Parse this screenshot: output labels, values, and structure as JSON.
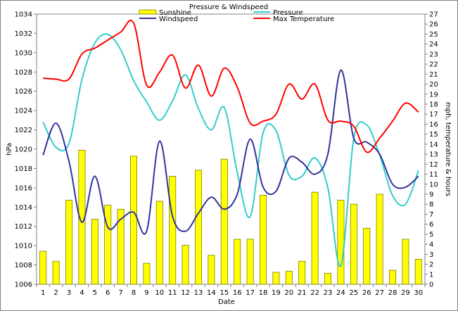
{
  "chart_data": {
    "type": "bar",
    "title": "Pressure & Windspeed",
    "xlabel": "Date",
    "ylabel": "hPa",
    "y2label": "mph, temperature & hours",
    "categories": [
      "1",
      "2",
      "3",
      "4",
      "5",
      "6",
      "7",
      "8",
      "9",
      "10",
      "11",
      "12",
      "13",
      "14",
      "15",
      "16",
      "17",
      "18",
      "19",
      "20",
      "21",
      "22",
      "23",
      "24",
      "25",
      "26",
      "27",
      "28",
      "29",
      "30"
    ],
    "ylim": [
      1006,
      1034
    ],
    "y_ticks": [
      "1006",
      "1008",
      "1010",
      "1012",
      "1014",
      "1016",
      "1018",
      "1020",
      "1022",
      "1024",
      "1026",
      "1028",
      "1030",
      "1032",
      "1034"
    ],
    "y2lim": [
      0,
      27
    ],
    "y2_ticks": [
      "0",
      "1",
      "2",
      "3",
      "4",
      "5",
      "6",
      "7",
      "8",
      "9",
      "10",
      "11",
      "12",
      "13",
      "14",
      "15",
      "16",
      "17",
      "18",
      "19",
      "20",
      "21",
      "22",
      "23",
      "24",
      "25",
      "26",
      "27"
    ],
    "legend_position": "top",
    "grid": false,
    "series": [
      {
        "name": "Sunshine",
        "type": "bar",
        "axis": "right",
        "color": "#ffff00",
        "values": [
          3.3,
          2.3,
          8.4,
          13.4,
          6.5,
          7.9,
          7.5,
          12.8,
          2.1,
          8.3,
          10.8,
          3.9,
          11.4,
          2.9,
          12.5,
          4.5,
          4.5,
          8.9,
          1.2,
          1.3,
          2.3,
          9.2,
          1.1,
          8.4,
          8.0,
          5.6,
          9.0,
          1.4,
          4.5,
          2.5
        ]
      },
      {
        "name": "Pressure",
        "type": "line",
        "axis": "left",
        "color": "#33cccc",
        "values": [
          1022.8,
          1020.2,
          1020.6,
          1027.2,
          1031.0,
          1031.9,
          1030.3,
          1027.1,
          1024.9,
          1023.0,
          1025.0,
          1027.7,
          1024.2,
          1022.0,
          1024.3,
          1017.6,
          1013.0,
          1021.7,
          1021.9,
          1017.3,
          1017.2,
          1019.1,
          1016.0,
          1007.9,
          1021.1,
          1022.5,
          1019.4,
          1015.2,
          1014.3,
          1017.8
        ]
      },
      {
        "name": "Windspeed",
        "type": "line",
        "axis": "right",
        "color": "#333399",
        "values": [
          12.9,
          16.1,
          12.3,
          6.2,
          10.8,
          5.7,
          6.5,
          7.2,
          5.3,
          14.3,
          6.8,
          5.3,
          7.1,
          8.7,
          7.5,
          9.0,
          14.5,
          9.7,
          9.3,
          12.6,
          12.2,
          11.0,
          13.0,
          21.4,
          14.6,
          14.2,
          13.0,
          10.0,
          9.7,
          10.8
        ]
      },
      {
        "name": "Max Temperature",
        "type": "line",
        "axis": "right",
        "color": "#ff0000",
        "values": [
          20.6,
          20.5,
          20.5,
          23.0,
          23.6,
          24.4,
          25.2,
          26.1,
          19.9,
          21.2,
          22.9,
          19.6,
          21.9,
          18.8,
          21.6,
          19.7,
          16.1,
          16.3,
          17.0,
          20.0,
          18.5,
          20.0,
          16.4,
          16.3,
          15.8,
          13.2,
          14.6,
          16.3,
          18.1,
          17.2
        ]
      }
    ]
  }
}
